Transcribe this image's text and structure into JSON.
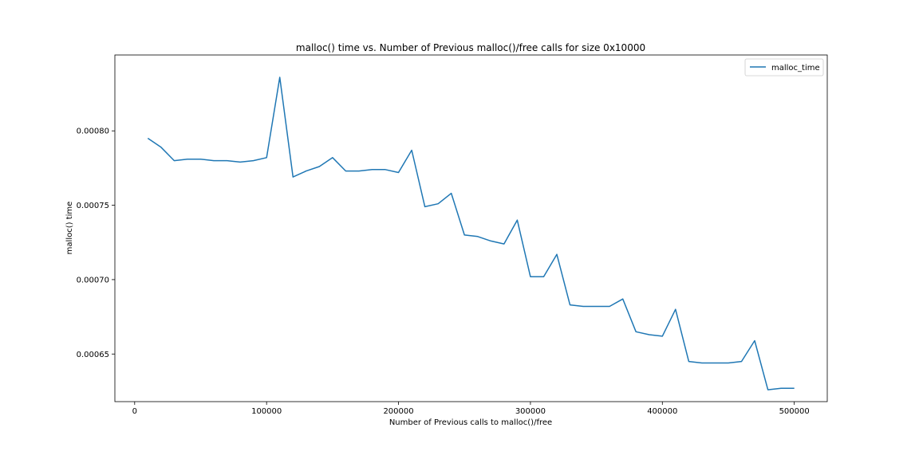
{
  "chart_data": {
    "type": "line",
    "title": "malloc() time vs. Number of Previous malloc()/free calls for size 0x10000",
    "xlabel": "Number of Previous calls to malloc()/free",
    "ylabel": "malloc() time",
    "xlim": [
      -15000,
      525000
    ],
    "ylim": [
      0.000618,
      0.000851
    ],
    "xticks": [
      0,
      100000,
      200000,
      300000,
      400000,
      500000
    ],
    "xtick_labels": [
      "0",
      "100000",
      "200000",
      "300000",
      "400000",
      "500000"
    ],
    "yticks": [
      0.00065,
      0.0007,
      0.00075,
      0.0008
    ],
    "ytick_labels": [
      "0.00065",
      "0.00070",
      "0.00075",
      "0.00080"
    ],
    "grid": false,
    "legend_position": "top-right",
    "series": [
      {
        "name": "malloc_time",
        "color": "#1f77b4",
        "x": [
          10000,
          20000,
          30000,
          40000,
          50000,
          60000,
          70000,
          80000,
          90000,
          100000,
          110000,
          120000,
          130000,
          140000,
          150000,
          160000,
          170000,
          180000,
          190000,
          200000,
          210000,
          220000,
          230000,
          240000,
          250000,
          260000,
          270000,
          280000,
          290000,
          300000,
          310000,
          320000,
          330000,
          340000,
          350000,
          360000,
          370000,
          380000,
          390000,
          400000,
          410000,
          420000,
          430000,
          440000,
          450000,
          460000,
          470000,
          480000,
          490000,
          500000
        ],
        "y": [
          0.000795,
          0.000789,
          0.00078,
          0.000781,
          0.000781,
          0.00078,
          0.00078,
          0.000779,
          0.00078,
          0.000782,
          0.000836,
          0.000769,
          0.000773,
          0.000776,
          0.000782,
          0.000773,
          0.000773,
          0.000774,
          0.000774,
          0.000772,
          0.000787,
          0.000749,
          0.000751,
          0.000758,
          0.00073,
          0.000729,
          0.000726,
          0.000724,
          0.00074,
          0.000702,
          0.000702,
          0.000717,
          0.000683,
          0.000682,
          0.000682,
          0.000682,
          0.000687,
          0.000665,
          0.000663,
          0.000662,
          0.00068,
          0.000645,
          0.000644,
          0.000644,
          0.000644,
          0.000645,
          0.000659,
          0.000626,
          0.000627,
          0.000627
        ]
      }
    ]
  }
}
